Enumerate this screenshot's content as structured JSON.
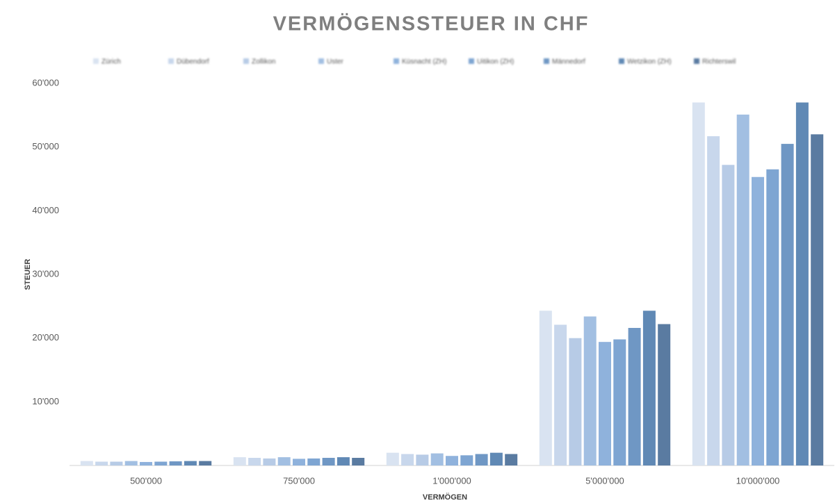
{
  "chart_data": {
    "type": "bar",
    "title": "VERMÖGENSSTEUER IN CHF",
    "x_label": "VERMÖGEN",
    "y_label": "STEUER",
    "categories": [
      "500'000",
      "750'000",
      "1'000'000",
      "5'000'000",
      "10'000'000"
    ],
    "series": [
      {
        "name": "Zürich",
        "color": "#d9e3f1",
        "values": [
          700,
          1300,
          2000,
          24300,
          57000
        ]
      },
      {
        "name": "Dübendorf",
        "color": "#c8d7ec",
        "values": [
          600,
          1200,
          1800,
          22100,
          51700
        ]
      },
      {
        "name": "Zollikon",
        "color": "#b7cbe6",
        "values": [
          600,
          1100,
          1700,
          20000,
          47200
        ]
      },
      {
        "name": "Uster",
        "color": "#a2bfe2",
        "values": [
          700,
          1300,
          1900,
          23400,
          55100
        ]
      },
      {
        "name": "Küsnacht (ZH)",
        "color": "#8fb2dc",
        "values": [
          550,
          1050,
          1500,
          19400,
          45300
        ]
      },
      {
        "name": "Uitikon (ZH)",
        "color": "#7ea5d2",
        "values": [
          600,
          1100,
          1600,
          19800,
          46500
        ]
      },
      {
        "name": "Männedorf",
        "color": "#6f97c4",
        "values": [
          650,
          1200,
          1800,
          21600,
          50500
        ]
      },
      {
        "name": "Wetzikon (ZH)",
        "color": "#6089b5",
        "values": [
          700,
          1300,
          2000,
          24300,
          57000
        ]
      },
      {
        "name": "Richterswil",
        "color": "#5a7ba1",
        "values": [
          700,
          1200,
          1800,
          22200,
          52000
        ]
      }
    ],
    "ylim": [
      0,
      60000
    ],
    "yticks": [
      {
        "value": 10000,
        "label": "10'000"
      },
      {
        "value": 20000,
        "label": "20'000"
      },
      {
        "value": 30000,
        "label": "30'000"
      },
      {
        "value": 40000,
        "label": "40'000"
      },
      {
        "value": 50000,
        "label": "50'000"
      },
      {
        "value": 60000,
        "label": "60'000"
      }
    ],
    "grid": false,
    "legend": "top"
  }
}
